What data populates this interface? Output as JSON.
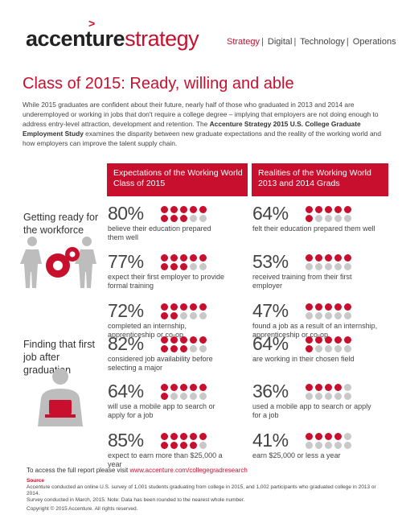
{
  "logo": {
    "brand_a": "accenture",
    "brand_b": "strategy"
  },
  "nav": [
    "Strategy",
    "Digital",
    "Technology",
    "Operations"
  ],
  "title": "Class of 2015: Ready, willing and able",
  "intro": {
    "text1": "While 2015 graduates are confident about their future, nearly half of those who graduated in 2013 and 2014 are underemployed or working in jobs that don't require a college degree – implying that employers are not doing enough to address entry-level attraction, development and retention. The ",
    "bold": "Accenture Strategy 2015 U.S. College Graduate Employment Study",
    "text2": " examines the disparity between new graduate expectations and the reality of the working world and how employers can improve the talent supply chain."
  },
  "columns": {
    "left": "Expectations of the Working World Class of 2015",
    "right": "Realities of the Working World 2013 and 2014 Grads"
  },
  "sections": [
    {
      "label": "Getting ready for the workforce"
    },
    {
      "label": "Finding that first job after graduation"
    }
  ],
  "stats": [
    {
      "side": "left",
      "pct": "80%",
      "desc": "believe their education prepared them well",
      "filled": 8
    },
    {
      "side": "right",
      "pct": "64%",
      "desc": "felt their education prepared them well",
      "filled": 6.4
    },
    {
      "side": "left",
      "pct": "77%",
      "desc": "expect their first employer to provide formal training",
      "filled": 7.7
    },
    {
      "side": "right",
      "pct": "53%",
      "desc": "received training from their first employer",
      "filled": 5.3
    },
    {
      "side": "left",
      "pct": "72%",
      "desc": "completed an internship, apprenticeship or co-op",
      "filled": 7.2
    },
    {
      "side": "right",
      "pct": "47%",
      "desc": "found a job as a result of an internship, apprenticeship or co-op",
      "filled": 4.7
    },
    {
      "side": "left",
      "pct": "82%",
      "desc": "considered job availability before selecting a major",
      "filled": 8.2
    },
    {
      "side": "right",
      "pct": "64%",
      "desc": "are working in their chosen field",
      "filled": 6.4
    },
    {
      "side": "left",
      "pct": "64%",
      "desc": "will use a mobile app to search or apply for a job",
      "filled": 6.4
    },
    {
      "side": "right",
      "pct": "36%",
      "desc": "used a mobile app to search or apply for a job",
      "filled": 3.6
    },
    {
      "side": "left",
      "pct": "85%",
      "desc": "expect to earn more than $25,000 a year",
      "filled": 8.5
    },
    {
      "side": "right",
      "pct": "41%",
      "desc": "earn $25,000 or less a year",
      "filled": 4.1
    }
  ],
  "footer": {
    "text": "To access the full report please visit ",
    "url": "www.accenture.com/collegegradresearch",
    "source_heading": "Source",
    "source_line1": "Accenture conducted an online U.S. survey of 1,001 students graduating from college in 2015, and 1,002 participants who graduated college in 2013 or 2014.",
    "source_line2": "Survey conducted in March, 2015. Note: Data has been rounded to the nearest whole number.",
    "copyright": "Copyright © 2015 Accenture. All rights reserved."
  },
  "colors": {
    "accent": "#c8102e",
    "muted": "#c8c8c8"
  }
}
